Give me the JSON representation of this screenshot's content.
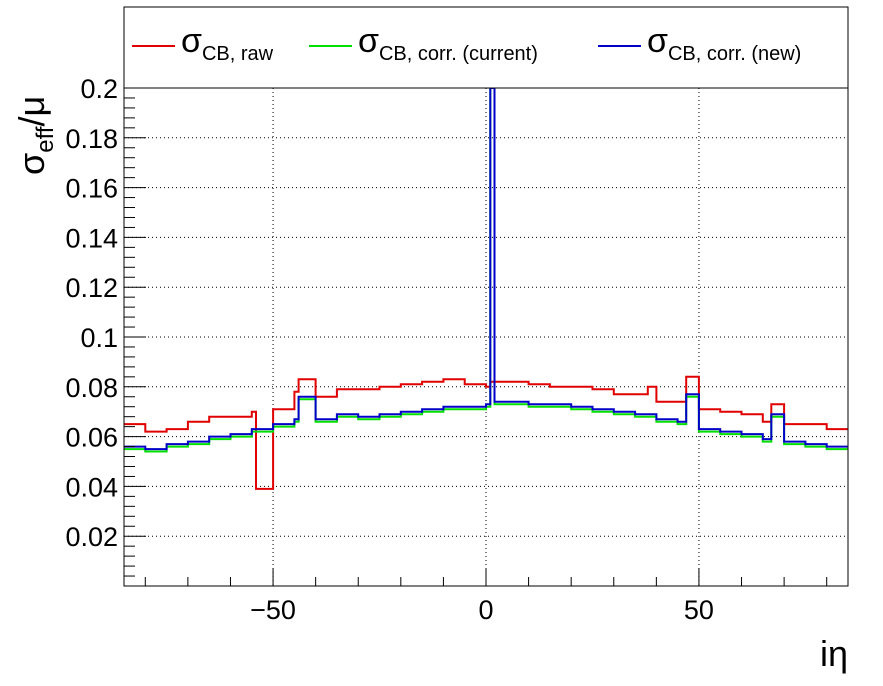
{
  "chart_data": {
    "type": "line",
    "style": "step-histogram",
    "xlabel": "iη",
    "ylabel": "σ_eff/μ",
    "ylabel_parts": {
      "main": "σ",
      "sub": "eff",
      "rest": "/μ"
    },
    "xlim": [
      -85,
      85
    ],
    "ylim": [
      0,
      0.2
    ],
    "x_ticks": [
      -50,
      0,
      50
    ],
    "x_tick_labels": [
      "−50",
      "0",
      "50"
    ],
    "y_ticks": [
      0.02,
      0.04,
      0.06,
      0.08,
      0.1,
      0.12,
      0.14,
      0.16,
      0.18,
      0.2
    ],
    "y_tick_labels": [
      "0.02",
      "0.04",
      "0.06",
      "0.08",
      "0.1",
      "0.12",
      "0.14",
      "0.16",
      "0.18",
      "0.2"
    ],
    "grid": true,
    "legend_position": "top",
    "series": [
      {
        "name": "σCB, raw",
        "name_main": "σ",
        "name_sub": "CB, raw",
        "color": "#e00000",
        "x": [
          -85,
          -80,
          -75,
          -70,
          -65,
          -60,
          -55,
          -54,
          -50,
          -45,
          -44,
          -40,
          -35,
          -30,
          -25,
          -20,
          -15,
          -10,
          -5,
          0,
          1,
          5,
          10,
          15,
          20,
          25,
          30,
          35,
          38,
          40,
          45,
          47,
          50,
          55,
          60,
          65,
          67,
          70,
          75,
          80,
          85
        ],
        "values": [
          0.065,
          0.062,
          0.063,
          0.066,
          0.068,
          0.068,
          0.07,
          0.039,
          0.071,
          0.078,
          0.083,
          0.076,
          0.079,
          0.079,
          0.08,
          0.081,
          0.082,
          0.083,
          0.081,
          0.08,
          0.082,
          0.082,
          0.081,
          0.08,
          0.08,
          0.079,
          0.077,
          0.077,
          0.08,
          0.074,
          0.074,
          0.084,
          0.071,
          0.07,
          0.069,
          0.066,
          0.073,
          0.065,
          0.065,
          0.063,
          0.063
        ]
      },
      {
        "name": "σCB, corr. (current)",
        "name_main": "σ",
        "name_sub": "CB, corr. (current)",
        "color": "#00e000",
        "x": [
          -85,
          -80,
          -75,
          -70,
          -65,
          -60,
          -55,
          -50,
          -45,
          -44,
          -40,
          -35,
          -30,
          -25,
          -20,
          -15,
          -10,
          -5,
          0,
          1,
          2,
          5,
          10,
          15,
          20,
          25,
          30,
          35,
          40,
          45,
          47,
          50,
          55,
          60,
          65,
          67,
          70,
          75,
          80,
          85
        ],
        "values": [
          0.055,
          0.054,
          0.056,
          0.057,
          0.059,
          0.06,
          0.062,
          0.064,
          0.066,
          0.075,
          0.066,
          0.068,
          0.067,
          0.068,
          0.069,
          0.07,
          0.071,
          0.071,
          0.072,
          0.2,
          0.073,
          0.073,
          0.072,
          0.072,
          0.071,
          0.07,
          0.069,
          0.068,
          0.066,
          0.065,
          0.076,
          0.062,
          0.061,
          0.06,
          0.058,
          0.068,
          0.057,
          0.056,
          0.055,
          0.055
        ]
      },
      {
        "name": "σCB, corr. (new)",
        "name_main": "σ",
        "name_sub": "CB, corr. (new)",
        "color": "#0000c8",
        "x": [
          -85,
          -80,
          -75,
          -70,
          -65,
          -60,
          -55,
          -50,
          -45,
          -44,
          -40,
          -35,
          -30,
          -25,
          -20,
          -15,
          -10,
          -5,
          0,
          1,
          2,
          5,
          10,
          15,
          20,
          25,
          30,
          35,
          40,
          45,
          47,
          50,
          55,
          60,
          65,
          67,
          70,
          75,
          80,
          85
        ],
        "values": [
          0.056,
          0.055,
          0.057,
          0.058,
          0.06,
          0.061,
          0.063,
          0.065,
          0.067,
          0.076,
          0.067,
          0.069,
          0.068,
          0.069,
          0.07,
          0.071,
          0.072,
          0.072,
          0.073,
          0.2,
          0.074,
          0.074,
          0.073,
          0.073,
          0.072,
          0.071,
          0.07,
          0.069,
          0.067,
          0.066,
          0.077,
          0.063,
          0.062,
          0.061,
          0.059,
          0.069,
          0.058,
          0.057,
          0.056,
          0.056
        ]
      }
    ]
  }
}
